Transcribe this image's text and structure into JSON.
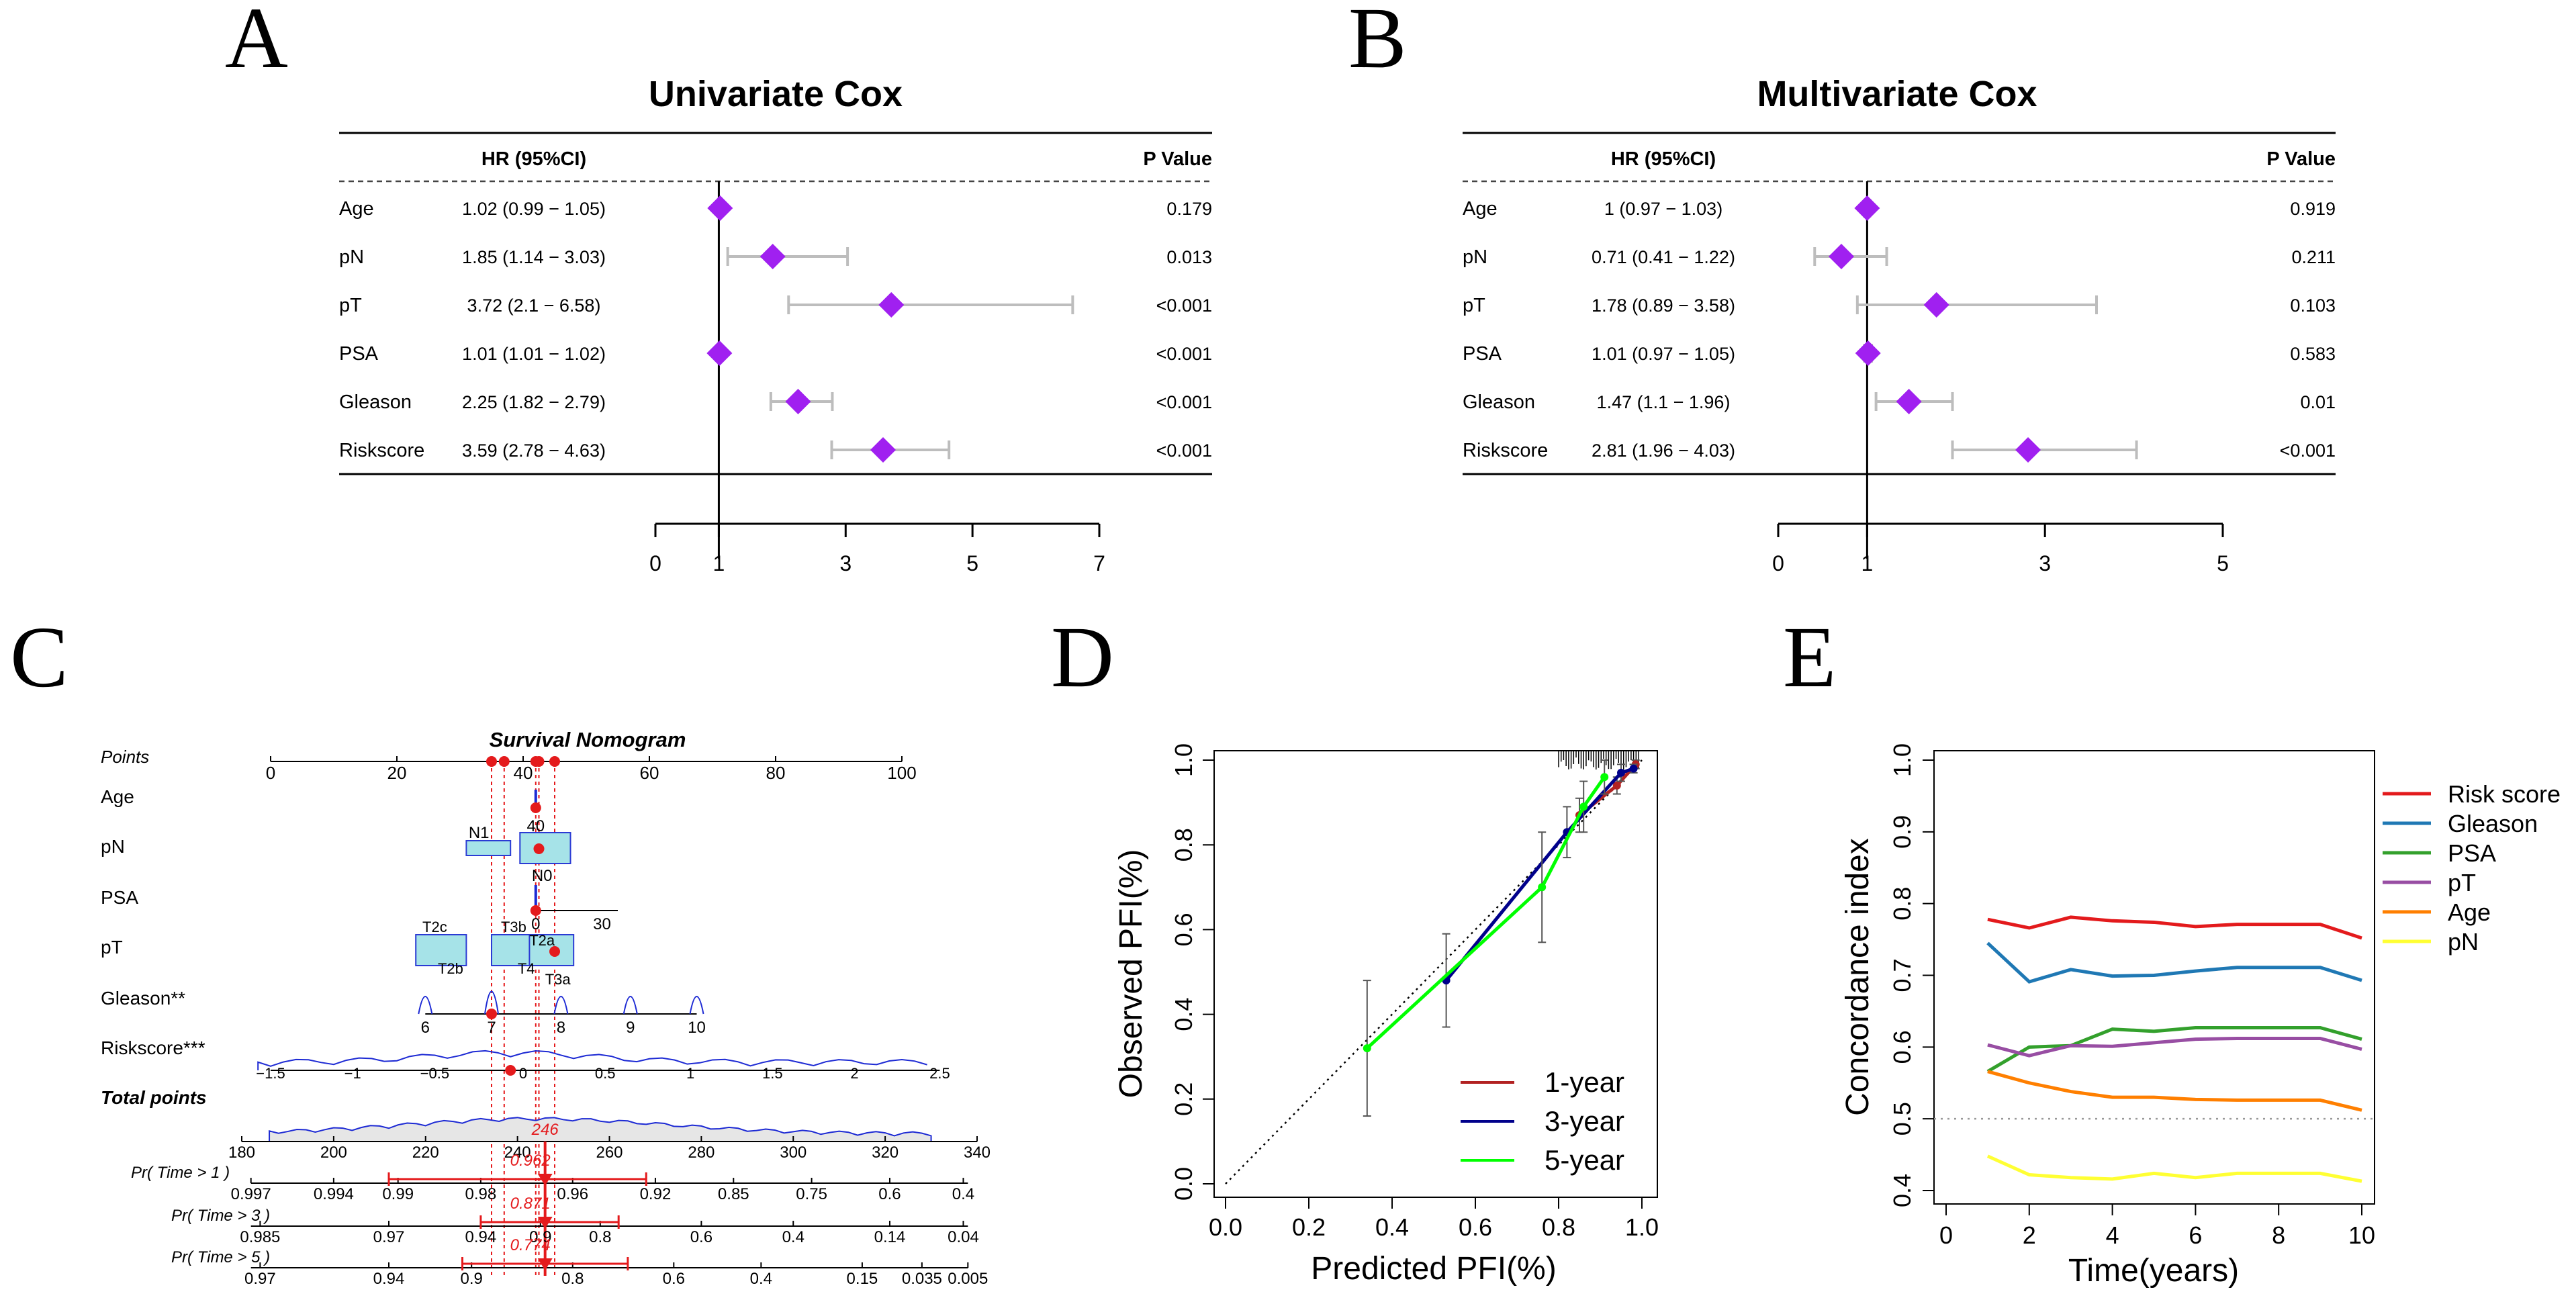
{
  "colors": {
    "diamond": "#a020f0",
    "ci": "#bdbdbd",
    "red": "#e41a1c",
    "box_fill": "#a6e3e8",
    "box_stroke": "#2b3bd4",
    "density": "#1d2ad4",
    "cal1": "#b22222",
    "cal3": "#00008b",
    "cal5": "#00ff00",
    "riskscore": "#e31a1c",
    "gleason": "#1f78b4",
    "psa": "#33a02c",
    "pt": "#984ea3",
    "age": "#ff7f00",
    "pn": "#ffff33"
  },
  "panel_labels": [
    "A",
    "B",
    "C",
    "D",
    "E"
  ],
  "chart_data": [
    {
      "type": "forest",
      "panel": "A",
      "title": "Univariate Cox",
      "hr_header": "HR (95%CI)",
      "p_header": "P Value",
      "rows": [
        {
          "label": "Age",
          "hr_text": "1.02 (0.99 − 1.05)",
          "p": "0.179",
          "hr": 1.02,
          "lo": 0.99,
          "hi": 1.05
        },
        {
          "label": "pN",
          "hr_text": "1.85 (1.14 − 3.03)",
          "p": "0.013",
          "hr": 1.85,
          "lo": 1.14,
          "hi": 3.03
        },
        {
          "label": "pT",
          "hr_text": "3.72 (2.1 − 6.58)",
          "p": "<0.001",
          "hr": 3.72,
          "lo": 2.1,
          "hi": 6.58
        },
        {
          "label": "PSA",
          "hr_text": "1.01 (1.01 − 1.02)",
          "p": "<0.001",
          "hr": 1.01,
          "lo": 1.01,
          "hi": 1.02
        },
        {
          "label": "Gleason",
          "hr_text": "2.25 (1.82 − 2.79)",
          "p": "<0.001",
          "hr": 2.25,
          "lo": 1.82,
          "hi": 2.79
        },
        {
          "label": "Riskscore",
          "hr_text": "3.59 (2.78 − 4.63)",
          "p": "<0.001",
          "hr": 3.59,
          "lo": 2.78,
          "hi": 4.63
        }
      ],
      "xlim": [
        0,
        7
      ],
      "ticks": [
        0,
        1,
        3,
        5,
        7
      ],
      "ref": 1
    },
    {
      "type": "forest",
      "panel": "B",
      "title": "Multivariate Cox",
      "hr_header": "HR (95%CI)",
      "p_header": "P Value",
      "rows": [
        {
          "label": "Age",
          "hr_text": "1 (0.97 − 1.03)",
          "p": "0.919",
          "hr": 1.0,
          "lo": 0.97,
          "hi": 1.03
        },
        {
          "label": "pN",
          "hr_text": "0.71 (0.41 − 1.22)",
          "p": "0.211",
          "hr": 0.71,
          "lo": 0.41,
          "hi": 1.22
        },
        {
          "label": "pT",
          "hr_text": "1.78 (0.89 − 3.58)",
          "p": "0.103",
          "hr": 1.78,
          "lo": 0.89,
          "hi": 3.58
        },
        {
          "label": "PSA",
          "hr_text": "1.01 (0.97 − 1.05)",
          "p": "0.583",
          "hr": 1.01,
          "lo": 0.97,
          "hi": 1.05
        },
        {
          "label": "Gleason",
          "hr_text": "1.47 (1.1 − 1.96)",
          "p": "0.01",
          "hr": 1.47,
          "lo": 1.1,
          "hi": 1.96
        },
        {
          "label": "Riskscore",
          "hr_text": "2.81 (1.96 − 4.03)",
          "p": "<0.001",
          "hr": 2.81,
          "lo": 1.96,
          "hi": 4.03
        }
      ],
      "xlim": [
        0,
        5
      ],
      "ticks": [
        0,
        1,
        3,
        5
      ],
      "ref": 1
    },
    {
      "type": "nomogram",
      "panel": "C",
      "title": "Survival Nomogram",
      "points_axis": {
        "label": "Points",
        "ticks": [
          "0",
          "20",
          "40",
          "60",
          "80",
          "100"
        ],
        "range": [
          0,
          100
        ]
      },
      "selected_points": [
        35,
        37,
        42,
        42.5,
        45
      ],
      "variables": [
        {
          "label": "Age",
          "value_labels": [
            "40"
          ],
          "point": 42
        },
        {
          "label": "pN",
          "categories": [
            {
              "label": "N1",
              "points": 35
            },
            {
              "label": "N0",
              "points": 42.5
            }
          ],
          "selected": "N0"
        },
        {
          "label": "PSA",
          "value_labels": [
            "0",
            "30"
          ],
          "range_points": [
            42,
            55
          ],
          "point": 42
        },
        {
          "label": "pT",
          "categories": [
            {
              "label": "T2c",
              "points": 26
            },
            {
              "label": "T2b",
              "points": 28
            },
            {
              "label": "T3b",
              "points": 38.5
            },
            {
              "label": "T4",
              "points": 40
            },
            {
              "label": "T2a",
              "points": 42.5
            },
            {
              "label": "T3a",
              "points": 45
            }
          ],
          "selected": "T3a"
        },
        {
          "label": "Gleason**",
          "ticks": [
            "6",
            "7",
            "8",
            "9",
            "10"
          ],
          "tick_points": [
            24.5,
            35,
            46,
            57,
            67.5
          ],
          "point": 35
        },
        {
          "label": "Riskscore***",
          "ticks": [
            "−1.5",
            "−1",
            "−0.5",
            "0",
            "0.5",
            "1",
            "1.5",
            "2",
            "2.5"
          ],
          "tick_points": [
            0,
            13,
            26,
            40,
            53,
            66.5,
            79.5,
            92.5,
            106
          ],
          "point": 38
        }
      ],
      "total_points": {
        "label": "Total points",
        "ticks": [
          "180",
          "200",
          "220",
          "240",
          "260",
          "280",
          "300",
          "320",
          "340"
        ],
        "values": [
          180,
          200,
          220,
          240,
          260,
          280,
          300,
          320,
          340
        ],
        "selected": 246,
        "selected_label": "246"
      },
      "probabilities": [
        {
          "label": "Pr( Time > 1 )",
          "ticks": [
            "0.997",
            "0.994",
            "0.99",
            "0.98",
            "0.96",
            "0.92",
            "0.85",
            "0.75",
            "0.6",
            "0.4"
          ],
          "tick_total": [
            182,
            200,
            214,
            232,
            252,
            270,
            287,
            304,
            321,
            337
          ],
          "value_label": "0.962",
          "ci_total": [
            212,
            268
          ]
        },
        {
          "label": "Pr( Time > 3 )",
          "ticks": [
            "0.985",
            "0.97",
            "0.94",
            "0.9",
            "0.8",
            "0.6",
            "0.4",
            "0.14",
            "0.04"
          ],
          "tick_total": [
            184,
            212,
            232,
            245,
            258,
            280,
            300,
            321,
            337
          ],
          "value_label": "0.871",
          "ci_total": [
            232,
            262
          ]
        },
        {
          "label": "Pr( Time > 5 )",
          "ticks": [
            "0.97",
            "0.94",
            "0.9",
            "0.8",
            "0.6",
            "0.4",
            "0.15",
            "0.035",
            "0.005"
          ],
          "tick_total": [
            184,
            212,
            230,
            252,
            274,
            293,
            315,
            328,
            338
          ],
          "value_label": "0.774",
          "ci_total": [
            228,
            264
          ]
        }
      ]
    },
    {
      "type": "line",
      "panel": "D",
      "title": "",
      "xlabel": "Predicted PFI(%)",
      "ylabel": "Observed PFI(%)",
      "xlim": [
        0.0,
        1.0
      ],
      "ylim": [
        0.0,
        1.0
      ],
      "ticks": [
        "0.0",
        "0.2",
        "0.4",
        "0.6",
        "0.8",
        "1.0"
      ],
      "legend": "bottom-right",
      "series": [
        {
          "name": "1-year",
          "points": [
            [
              0.85,
              0.87
            ],
            [
              0.94,
              0.94
            ],
            [
              0.985,
              0.99
            ]
          ],
          "err": [
            0.04,
            0.02,
            0.01
          ]
        },
        {
          "name": "3-year",
          "points": [
            [
              0.53,
              0.48
            ],
            [
              0.82,
              0.83
            ],
            [
              0.95,
              0.97
            ],
            [
              0.98,
              0.98
            ]
          ],
          "err": [
            0.11,
            0.06,
            0.02,
            0.01
          ]
        },
        {
          "name": "5-year",
          "points": [
            [
              0.34,
              0.32
            ],
            [
              0.76,
              0.7
            ],
            [
              0.86,
              0.89
            ],
            [
              0.91,
              0.96
            ]
          ],
          "err": [
            0.16,
            0.13,
            0.06,
            0.04
          ]
        }
      ]
    },
    {
      "type": "line",
      "panel": "E",
      "title": "",
      "xlabel": "Time(years)",
      "ylabel": "Concordance index",
      "xlim": [
        0,
        10
      ],
      "ylim": [
        0.4,
        1.0
      ],
      "xticks": [
        "0",
        "2",
        "4",
        "6",
        "8",
        "10"
      ],
      "yticks": [
        "0.4",
        "0.5",
        "0.6",
        "0.7",
        "0.8",
        "0.9",
        "1.0"
      ],
      "reference_line": 0.5,
      "legend": "top-right",
      "x": [
        1,
        2,
        3,
        4,
        5,
        6,
        7,
        8,
        9,
        10
      ],
      "series": [
        {
          "name": "Risk score",
          "values": [
            0.778,
            0.766,
            0.781,
            0.776,
            0.774,
            0.768,
            0.771,
            0.771,
            0.771,
            0.752
          ]
        },
        {
          "name": "Gleason",
          "values": [
            0.745,
            0.691,
            0.708,
            0.699,
            0.7,
            0.706,
            0.711,
            0.711,
            0.711,
            0.693
          ]
        },
        {
          "name": "PSA",
          "values": [
            0.566,
            0.6,
            0.602,
            0.625,
            0.622,
            0.627,
            0.627,
            0.627,
            0.627,
            0.611
          ]
        },
        {
          "name": "pT",
          "values": [
            0.603,
            0.588,
            0.602,
            0.601,
            0.606,
            0.611,
            0.612,
            0.612,
            0.612,
            0.597
          ]
        },
        {
          "name": "Age",
          "values": [
            0.566,
            0.55,
            0.538,
            0.53,
            0.53,
            0.527,
            0.526,
            0.526,
            0.526,
            0.512
          ]
        },
        {
          "name": "pN",
          "values": [
            0.448,
            0.422,
            0.418,
            0.416,
            0.424,
            0.418,
            0.424,
            0.424,
            0.424,
            0.413
          ]
        }
      ]
    }
  ]
}
